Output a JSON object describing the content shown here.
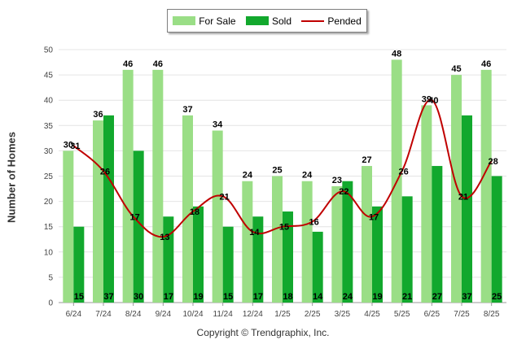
{
  "chart_data": {
    "type": "bar",
    "categories": [
      "6/24",
      "7/24",
      "8/24",
      "9/24",
      "10/24",
      "11/24",
      "12/24",
      "1/25",
      "2/25",
      "3/25",
      "4/25",
      "5/25",
      "6/25",
      "7/25",
      "8/25"
    ],
    "series": [
      {
        "name": "For Sale",
        "type": "bar",
        "color": "#9ade86",
        "values": [
          30,
          36,
          46,
          46,
          37,
          34,
          24,
          25,
          24,
          23,
          27,
          48,
          39,
          45,
          46
        ]
      },
      {
        "name": "Sold",
        "type": "bar",
        "color": "#12a82d",
        "values": [
          15,
          37,
          30,
          17,
          19,
          15,
          17,
          18,
          14,
          24,
          19,
          21,
          27,
          37,
          25
        ]
      },
      {
        "name": "Pended",
        "type": "line",
        "color": "#c00000",
        "values": [
          31,
          26,
          17,
          13,
          18,
          21,
          14,
          15,
          16,
          22,
          17,
          26,
          40,
          21,
          28
        ]
      }
    ],
    "ylabel": "Number of Homes",
    "ylim": [
      0,
      50
    ],
    "yticks": [
      0,
      5,
      10,
      15,
      20,
      25,
      30,
      35,
      40,
      45,
      50
    ],
    "grid": true,
    "legend_position": "top-center"
  },
  "footer": {
    "copyright": "Copyright © Trendgraphix, Inc."
  }
}
